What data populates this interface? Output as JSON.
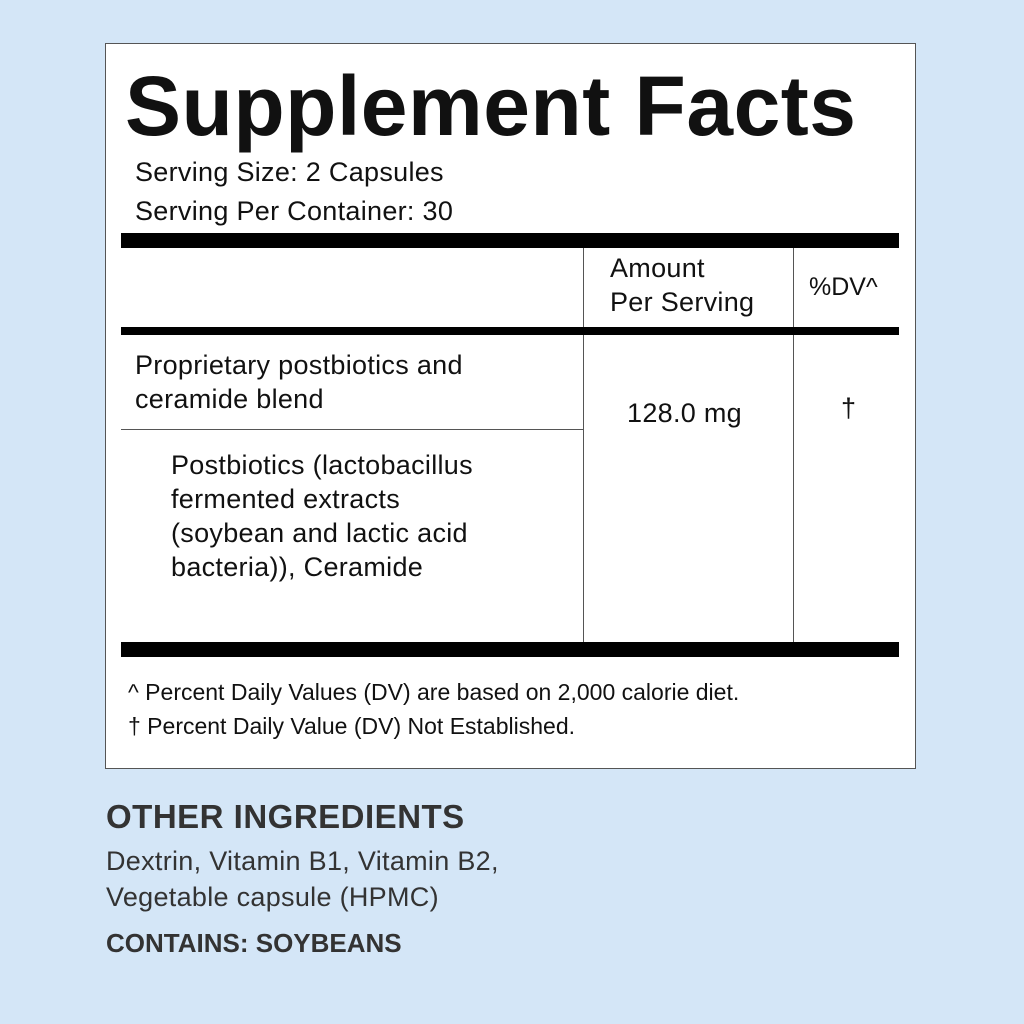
{
  "title": "Supplement Facts",
  "serving_size": "Serving Size: 2 Capsules",
  "servings_per_container": "Serving Per Container: 30",
  "header": {
    "amount_line1": "Amount",
    "amount_line2": "Per Serving",
    "dv": "%DV^"
  },
  "rows": [
    {
      "name_lines": [
        "Proprietary postbiotics and",
        "ceramide blend"
      ],
      "amount": "128.0 mg",
      "dv": "†"
    },
    {
      "name_lines": [
        "Postbiotics (lactobacillus",
        "fermented extracts",
        "(soybean and lactic acid",
        "bacteria)), Ceramide"
      ]
    }
  ],
  "footnotes": [
    "^ Percent Daily Values (DV) are based on 2,000 calorie diet.",
    "† Percent Daily Value (DV) Not Established."
  ],
  "other": {
    "heading": "OTHER INGREDIENTS",
    "lines": [
      "Dextrin, Vitamin B1, Vitamin B2,",
      "Vegetable capsule (HPMC)"
    ],
    "contains": "CONTAINS: SOYBEANS"
  },
  "colors": {
    "background": "#d4e6f7",
    "panel": "#ffffff",
    "text": "#111111",
    "bars": "#000000"
  }
}
